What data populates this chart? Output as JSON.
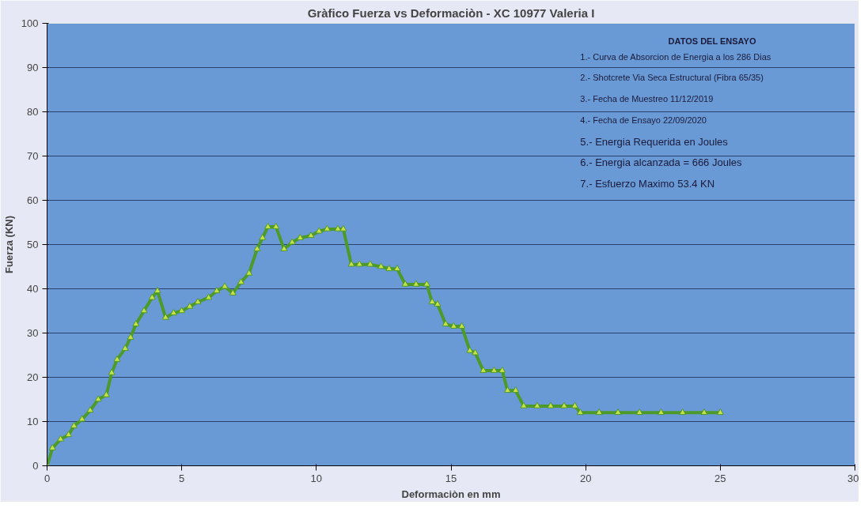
{
  "chart_data": {
    "type": "line",
    "title": "Gràfico Fuerza vs Deformaciòn - XC 10977 Valeria I",
    "xlabel": "Deformaciòn en mm",
    "ylabel": "Fuerza (KN)",
    "x": [
      0,
      0.2,
      0.5,
      0.8,
      1.0,
      1.3,
      1.6,
      1.9,
      2.2,
      2.4,
      2.6,
      2.9,
      3.1,
      3.3,
      3.6,
      3.9,
      4.1,
      4.4,
      4.7,
      5.0,
      5.3,
      5.6,
      6.0,
      6.3,
      6.6,
      6.9,
      7.2,
      7.5,
      7.8,
      8.0,
      8.2,
      8.5,
      8.8,
      9.1,
      9.4,
      9.8,
      10.1,
      10.4,
      10.8,
      11.0,
      11.3,
      11.6,
      12.0,
      12.4,
      12.7,
      13.0,
      13.3,
      13.7,
      14.1,
      14.3,
      14.5,
      14.8,
      15.1,
      15.4,
      15.7,
      15.9,
      16.2,
      16.6,
      16.9,
      17.1,
      17.4,
      17.7,
      18.2,
      18.7,
      19.2,
      19.6,
      19.8,
      20.5,
      21.2,
      22.0,
      22.8,
      23.6,
      24.4,
      25.0
    ],
    "series": [
      {
        "color": "#4c9a2a",
        "values": [
          0,
          4,
          6,
          7,
          9,
          10.5,
          12.5,
          15,
          16,
          21,
          24,
          26.5,
          29,
          32,
          35,
          38,
          39.5,
          33.5,
          34.5,
          35,
          36,
          37,
          38,
          39.5,
          40.5,
          39,
          41.5,
          43.5,
          49,
          51.5,
          54,
          54,
          49,
          50.5,
          51.5,
          52,
          53,
          53.5,
          53.5,
          53.5,
          45.5,
          45.5,
          45.5,
          45,
          44.5,
          44.5,
          41,
          41,
          41,
          37,
          36.5,
          32,
          31.5,
          31.5,
          26,
          25.5,
          21.5,
          21.5,
          21.5,
          17,
          17,
          13.5,
          13.5,
          13.5,
          13.5,
          13.5,
          12,
          12,
          12,
          12,
          12,
          12,
          12,
          12
        ]
      }
    ],
    "xlim": [
      0,
      30
    ],
    "xticks": [
      0,
      5,
      10,
      15,
      20,
      25,
      30
    ],
    "ylim": [
      0,
      100
    ],
    "yticks": [
      0,
      10,
      20,
      30,
      40,
      50,
      60,
      70,
      80,
      90,
      100
    ],
    "grid": "y",
    "marker": "triangle",
    "line_style": "solid",
    "annotations": [
      "DATOS DEL ENSAYO",
      "1.- Curva de Absorcion de Energia a los 286 Dias",
      "2.- Shotcrete Via Seca Estructural (Fibra 65/35)",
      "3.- Fecha de Muestreo 11/12/2019",
      "4.- Fecha de Ensayo    22/09/2020",
      "5.- Energia Requerida en Joules",
      "6.- Energia alcanzada = 666 Joules",
      "7.- Esfuerzo Maximo 53.4 KN"
    ]
  }
}
